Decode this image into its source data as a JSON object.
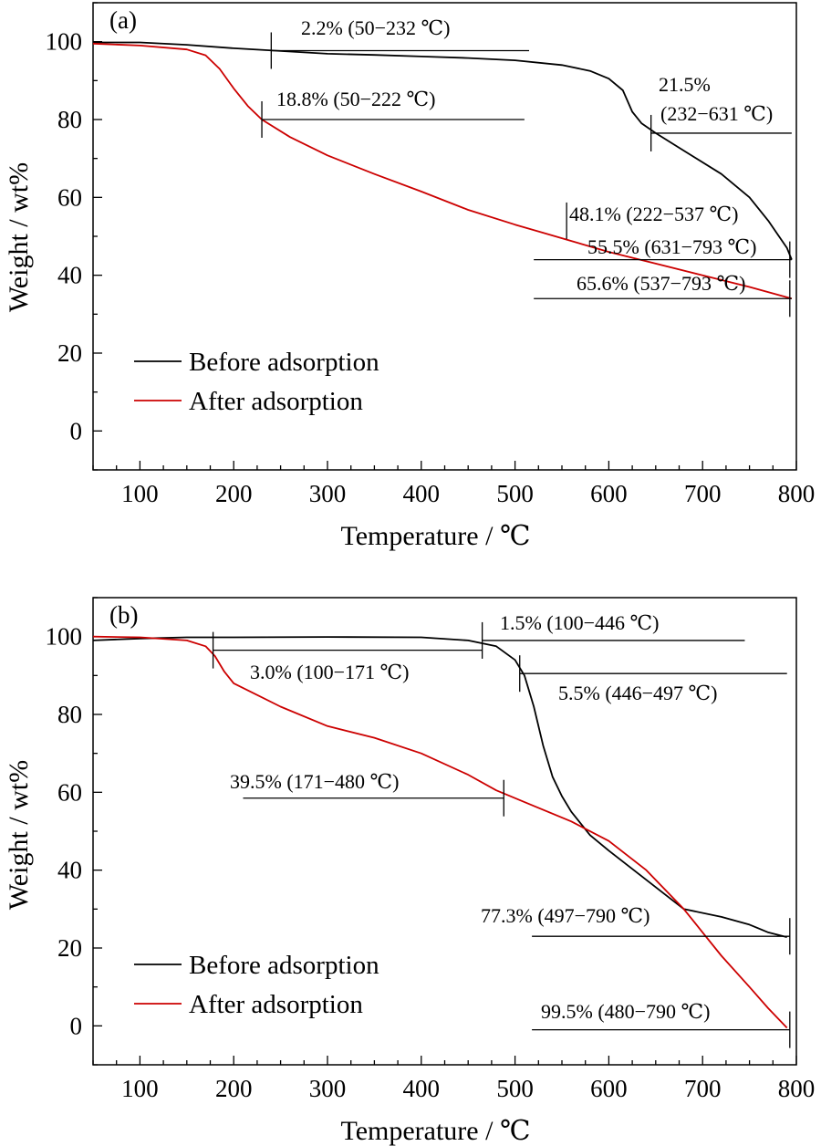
{
  "chart_data": [
    {
      "type": "line",
      "panel_label": "(a)",
      "xlabel": "Temperature / ℃",
      "ylabel": "Weight / wt%",
      "xlim": [
        50,
        800
      ],
      "ylim": [
        -10,
        110
      ],
      "x_ticks": [
        "100",
        "200",
        "300",
        "400",
        "500",
        "600",
        "700",
        "800"
      ],
      "y_ticks": [
        "0",
        "20",
        "40",
        "60",
        "80",
        "100"
      ],
      "legend_position": "lower-left",
      "series": [
        {
          "name": "Before adsorption",
          "color": "#000000",
          "x": [
            50,
            100,
            150,
            200,
            250,
            300,
            350,
            400,
            450,
            500,
            550,
            580,
            600,
            615,
            625,
            635,
            650,
            680,
            720,
            750,
            770,
            790,
            795
          ],
          "y": [
            99.8,
            99.8,
            99.2,
            98.3,
            97.6,
            96.9,
            96.6,
            96.2,
            95.8,
            95.2,
            94.0,
            92.5,
            90.5,
            87.5,
            82.0,
            79.0,
            76.5,
            72.0,
            66.0,
            60.0,
            54.0,
            47.0,
            44.0
          ]
        },
        {
          "name": "After adsorption",
          "color": "#cc0000",
          "x": [
            50,
            100,
            150,
            170,
            185,
            200,
            215,
            230,
            260,
            300,
            350,
            400,
            450,
            500,
            550,
            600,
            650,
            700,
            750,
            795
          ],
          "y": [
            99.5,
            99.0,
            98.0,
            96.5,
            93.0,
            88.0,
            83.5,
            80.0,
            75.5,
            70.8,
            66.0,
            61.5,
            56.8,
            53.0,
            49.5,
            46.0,
            43.0,
            40.0,
            37.0,
            34.0
          ]
        }
      ],
      "annotations": [
        {
          "text": "2.2% (50−232 ℃)",
          "ref_y": 97.7,
          "x_from": 240,
          "x_to": 515,
          "tick_x": 240
        },
        {
          "text": "18.8% (50−222 ℃)",
          "ref_y": 80.0,
          "x_from": 230,
          "x_to": 510,
          "tick_x": 230
        },
        {
          "text": "21.5%",
          "ref_y": null
        },
        {
          "text": "(232−631 ℃)",
          "ref_y": 76.5,
          "x_from": 645,
          "x_to": 795,
          "tick_x": 645
        },
        {
          "text": "48.1% (222−537 ℃)",
          "ref_y": null,
          "tick_x": 555
        },
        {
          "text": "55.5% (631−793 ℃)",
          "ref_y": 44.0,
          "x_from": 520,
          "x_to": 795,
          "tick_x": 793
        },
        {
          "text": "65.6% (537−793 ℃)",
          "ref_y": 34.0,
          "x_from": 520,
          "x_to": 795,
          "tick_x": 793
        }
      ]
    },
    {
      "type": "line",
      "panel_label": "(b)",
      "xlabel": "Temperature / ℃",
      "ylabel": "Weight / wt%",
      "xlim": [
        50,
        800
      ],
      "ylim": [
        -10,
        110
      ],
      "x_ticks": [
        "100",
        "200",
        "300",
        "400",
        "500",
        "600",
        "700",
        "800"
      ],
      "y_ticks": [
        "0",
        "20",
        "40",
        "60",
        "80",
        "100"
      ],
      "legend_position": "lower-left",
      "series": [
        {
          "name": "Before adsorption",
          "color": "#000000",
          "x": [
            50,
            100,
            150,
            200,
            300,
            400,
            450,
            480,
            500,
            510,
            520,
            530,
            540,
            550,
            560,
            580,
            600,
            640,
            680,
            720,
            750,
            770,
            790
          ],
          "y": [
            99.0,
            99.5,
            99.8,
            99.8,
            99.9,
            99.8,
            99.0,
            97.5,
            94.0,
            90.0,
            82.0,
            72.0,
            64.0,
            59.0,
            55.0,
            49.0,
            45.0,
            37.5,
            30.0,
            28.0,
            26.0,
            24.0,
            22.8
          ]
        },
        {
          "name": "After adsorption",
          "color": "#cc0000",
          "x": [
            50,
            100,
            150,
            170,
            180,
            190,
            200,
            250,
            300,
            350,
            400,
            450,
            480,
            520,
            560,
            600,
            640,
            680,
            700,
            720,
            750,
            770,
            790
          ],
          "y": [
            100.0,
            99.8,
            99.0,
            97.5,
            95.0,
            91.0,
            88.0,
            82.0,
            77.0,
            74.0,
            70.0,
            64.5,
            60.5,
            56.5,
            52.5,
            47.5,
            40.0,
            30.0,
            24.0,
            18.0,
            10.0,
            4.5,
            -0.5
          ]
        }
      ],
      "annotations": [
        {
          "text": "1.5% (100−446 ℃)",
          "ref_y": 99.0,
          "x_from": 465,
          "x_to": 745,
          "tick_x": 465
        },
        {
          "text": "3.0% (100−171 ℃)",
          "ref_y": 96.5,
          "x_from": 178,
          "x_to": 465,
          "tick_x": 178
        },
        {
          "text": "5.5% (446−497 ℃)",
          "ref_y": 90.5,
          "x_from": 505,
          "x_to": 790,
          "tick_x": 505
        },
        {
          "text": "39.5% (171−480 ℃)",
          "ref_y": 58.5,
          "x_from": 210,
          "x_to": 488,
          "tick_x": 488
        },
        {
          "text": "77.3% (497−790 ℃)",
          "ref_y": 23.0,
          "x_from": 518,
          "x_to": 793,
          "tick_x": 793
        },
        {
          "text": "99.5% (480−790 ℃)",
          "ref_y": -1.0,
          "x_from": 518,
          "x_to": 793,
          "tick_x": 793
        }
      ]
    }
  ]
}
